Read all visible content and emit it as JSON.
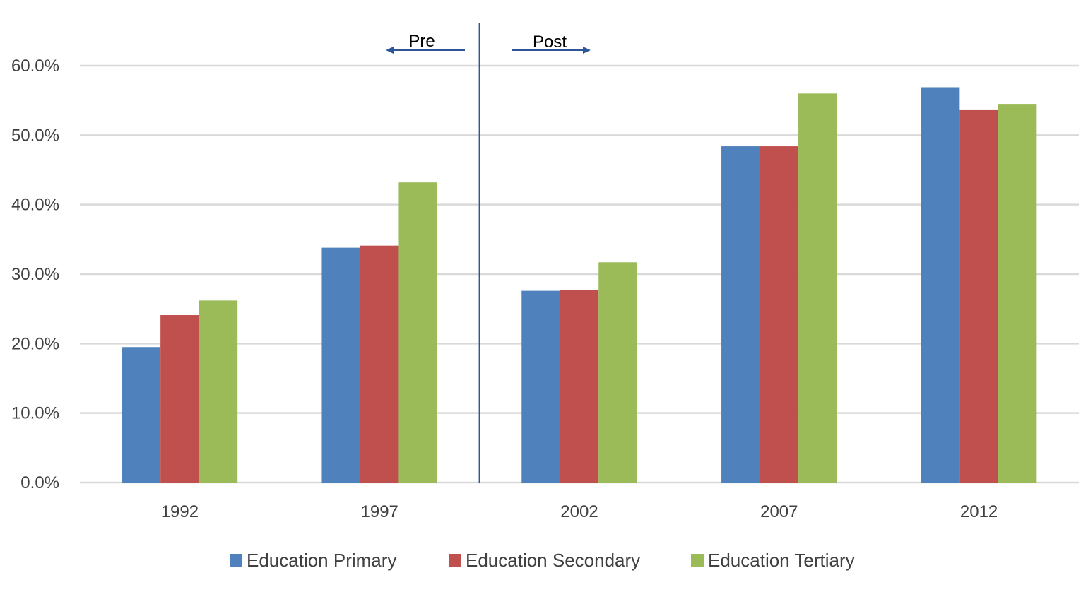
{
  "chart_data": {
    "type": "bar",
    "title": "",
    "xlabel": "",
    "ylabel": "",
    "categories": [
      "1992",
      "1997",
      "2002",
      "2007",
      "2012"
    ],
    "series": [
      {
        "name": "Education Primary",
        "color": "#4f81bd",
        "values": [
          19.5,
          33.8,
          27.6,
          48.4,
          56.9
        ]
      },
      {
        "name": "Education Secondary",
        "color": "#c0504d",
        "values": [
          24.1,
          34.1,
          27.7,
          48.4,
          53.6
        ]
      },
      {
        "name": "Education Tertiary",
        "color": "#9bbb59",
        "values": [
          26.2,
          43.2,
          31.7,
          56.0,
          54.5
        ]
      }
    ],
    "ylim": [
      0,
      60
    ],
    "yticks": [
      0,
      10,
      20,
      30,
      40,
      50,
      60
    ],
    "ytick_labels": [
      "0.0%",
      "10.0%",
      "20.0%",
      "30.0%",
      "40.0%",
      "50.0%",
      "60.0%"
    ],
    "grid": true,
    "legend_position": "bottom",
    "annotations": {
      "divider_between": [
        "1997",
        "2002"
      ],
      "pre_label": "Pre",
      "post_label": "Post",
      "divider_color": "#2e5597"
    }
  }
}
